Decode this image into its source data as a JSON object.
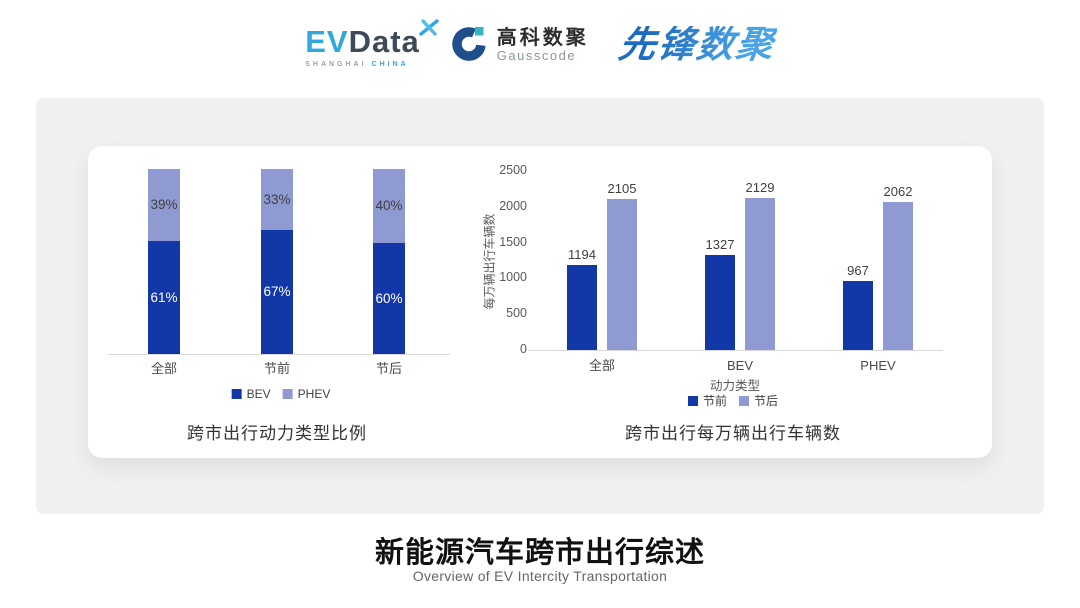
{
  "brand": {
    "evdata": {
      "ev": "EV",
      "data": "Data",
      "sub_left": "SHANGHAI",
      "sub_right": "CHINA"
    },
    "gausscode": {
      "cn": "高科数聚",
      "en": "Gausscode"
    },
    "pioneer": {
      "text": "先锋数聚"
    }
  },
  "footer": {
    "title": "新能源汽车跨市出行综述",
    "subtitle": "Overview of EV Intercity Transportation"
  },
  "chart_data": [
    {
      "type": "bar",
      "variant": "stacked-percent",
      "title": "跨市出行动力类型比例",
      "categories": [
        "全部",
        "节前",
        "节后"
      ],
      "series": [
        {
          "name": "BEV",
          "color": "#1238a8",
          "label_color": "#ffffff",
          "values": [
            61,
            67,
            60
          ]
        },
        {
          "name": "PHEV",
          "color": "#8f9ad3",
          "label_color": "#404040",
          "values": [
            39,
            33,
            40
          ]
        }
      ],
      "value_suffix": "%",
      "ylim": [
        0,
        100
      ],
      "legend_position": "bottom",
      "grid": false
    },
    {
      "type": "bar",
      "variant": "grouped",
      "title": "跨市出行每万辆出行车辆数",
      "xlabel": "动力类型",
      "ylabel": "每万辆出行车辆数",
      "categories": [
        "全部",
        "BEV",
        "PHEV"
      ],
      "series": [
        {
          "name": "节前",
          "color": "#1238a8",
          "values": [
            1194,
            1327,
            967
          ]
        },
        {
          "name": "节后",
          "color": "#8f9ad3",
          "values": [
            2105,
            2129,
            2062
          ]
        }
      ],
      "yticks": [
        0,
        500,
        1000,
        1500,
        2000,
        2500
      ],
      "ylim": [
        0,
        2500
      ],
      "legend_position": "bottom",
      "grid": false
    }
  ],
  "ui_colors": {
    "panel_bg": "#f0f0f1",
    "card_bg": "#ffffff",
    "axis_line": "#d9d9d9",
    "dark_series": "#1238a8",
    "light_series": "#8f9ad3"
  }
}
